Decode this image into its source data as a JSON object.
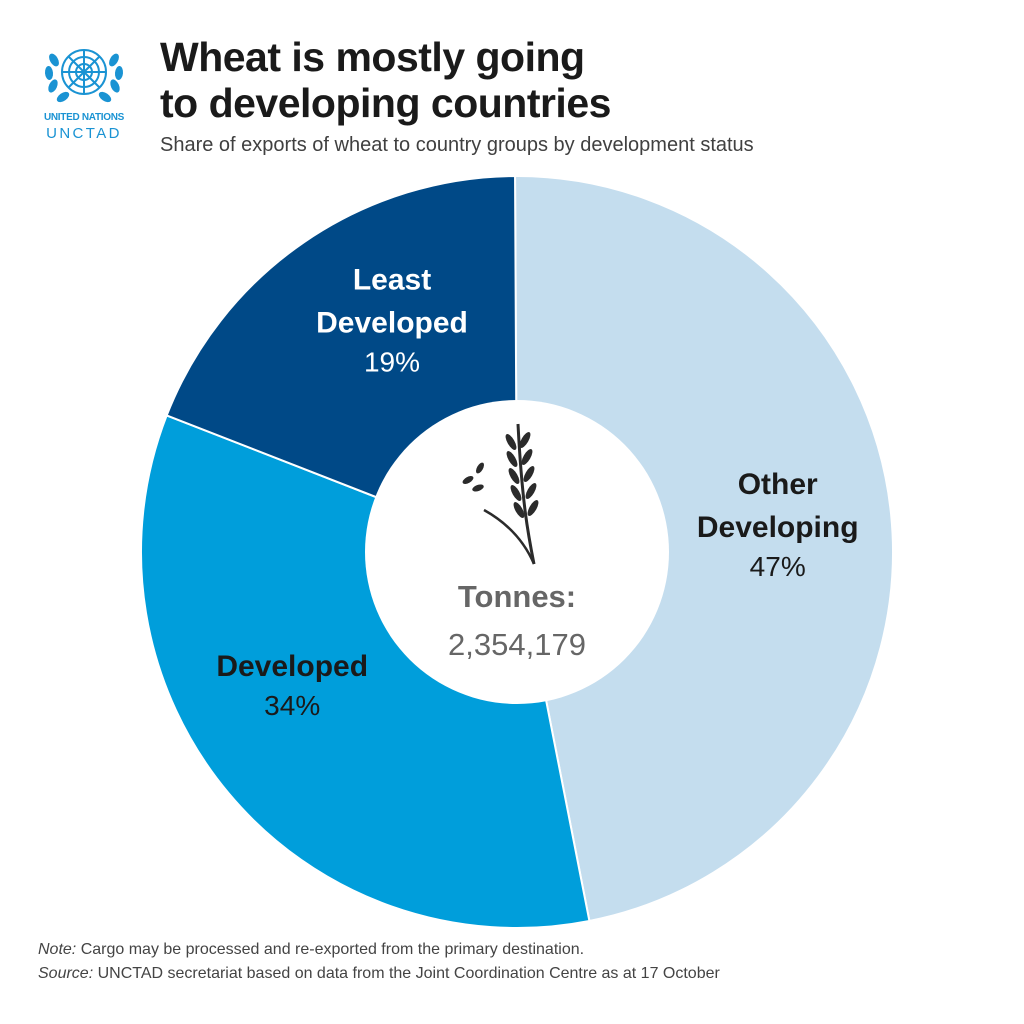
{
  "logo": {
    "org_line1": "UNITED NATIONS",
    "org_line2": "UNCTAD",
    "icon": "un-emblem-icon",
    "color": "#1a93d3"
  },
  "header": {
    "title_line1": "Wheat is mostly going",
    "title_line2": "to developing countries",
    "subtitle": "Share of exports of wheat to country groups by development status"
  },
  "chart_data": {
    "type": "pie",
    "donut": true,
    "title": "Wheat is mostly going to developing countries",
    "subtitle": "Share of exports of wheat to country groups by development status",
    "unit": "%",
    "slices": [
      {
        "label_lines": [
          "Other",
          "Developing"
        ],
        "value": 47,
        "value_label": "47%",
        "color": "#c4ddee",
        "label_color": "#1a1a1a"
      },
      {
        "label_lines": [
          "Developed"
        ],
        "value": 34,
        "value_label": "34%",
        "color": "#009edb",
        "label_color": "#1a1a1a"
      },
      {
        "label_lines": [
          "Least",
          "Developed"
        ],
        "value": 19,
        "value_label": "19%",
        "color": "#004987",
        "label_color": "#ffffff"
      }
    ],
    "center": {
      "label": "Tonnes:",
      "value": "2,354,179",
      "icon": "wheat-icon"
    },
    "legend": "none",
    "grid": false
  },
  "footer": {
    "note_prefix": "Note:",
    "note_text": " Cargo may be processed and re-exported from the primary destination.",
    "source_prefix": "Source:",
    "source_text": " UNCTAD secretariat based on data from the Joint Coordination Centre as at 17 October"
  }
}
